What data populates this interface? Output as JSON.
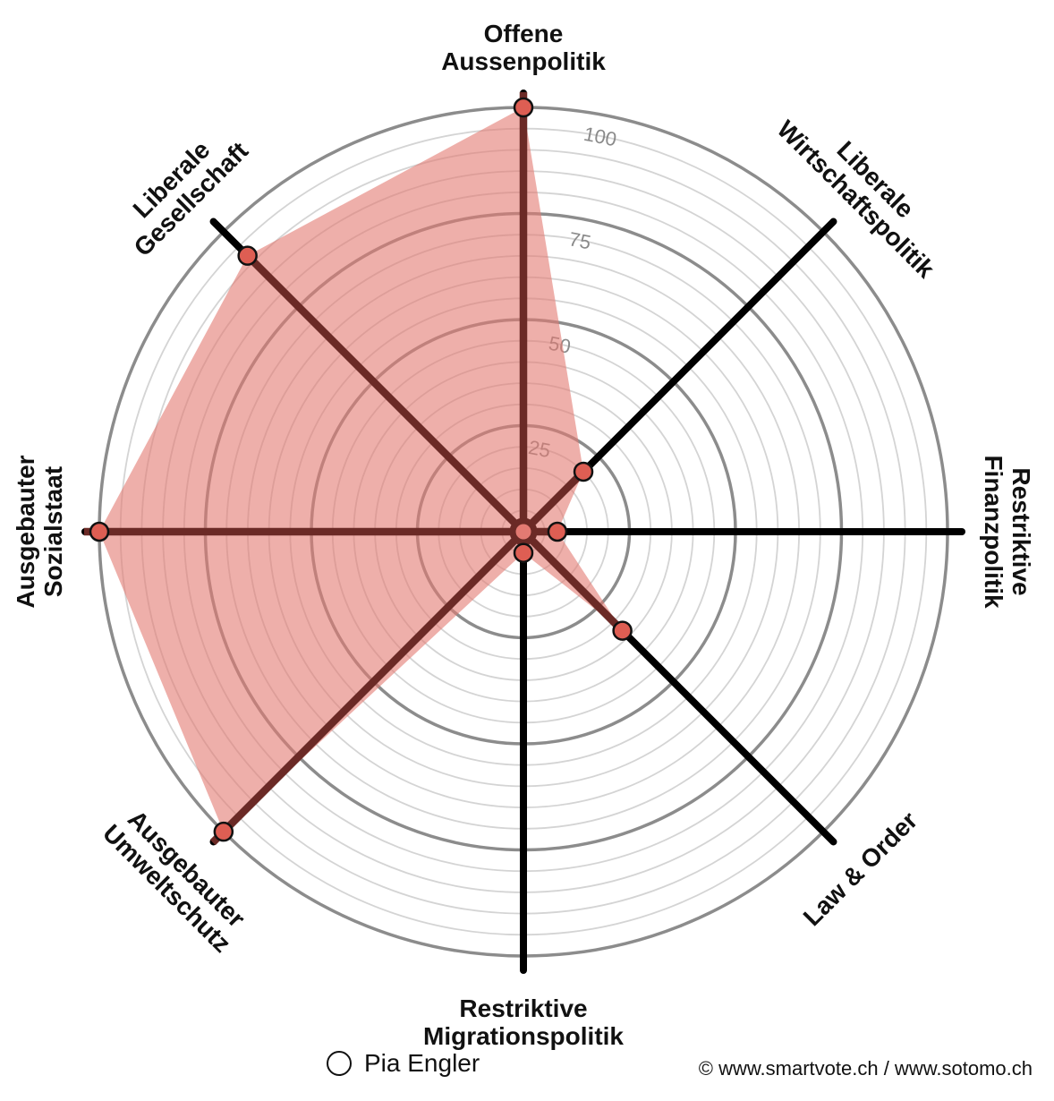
{
  "chart_data": {
    "type": "radar",
    "axes": [
      "Offene Aussenpolitik",
      "Liberale Wirtschaftspolitik",
      "Restriktive Finanzpolitik",
      "Law & Order",
      "Restriktive Migrationspolitik",
      "Ausgebauter Umweltschutz",
      "Ausgebauter Sozialstaat",
      "Liberale Gesellschaft"
    ],
    "axis_label_lines": [
      [
        "Offene",
        "Aussenpolitik"
      ],
      [
        "Liberale",
        "Wirtschaftspolitik"
      ],
      [
        "Restriktive",
        "Finanzpolitik"
      ],
      [
        "Law & Order"
      ],
      [
        "Restriktive",
        "Migrationspolitik"
      ],
      [
        "Ausgebauter",
        "Umweltschutz"
      ],
      [
        "Ausgebauter",
        "Sozialstaat"
      ],
      [
        "Liberale",
        "Gesellschaft"
      ]
    ],
    "series": [
      {
        "name": "Pia Engler",
        "values": [
          100,
          20,
          8,
          33,
          5,
          100,
          100,
          92
        ]
      }
    ],
    "range": [
      0,
      100
    ],
    "ticks": [
      25,
      50,
      75,
      100
    ],
    "grid": true,
    "legend_position": "bottom"
  },
  "colors": {
    "fill": "#e37a72",
    "marker": "#de5e53",
    "axis_active": "#6b2a26",
    "axis_inactive": "#000000",
    "grid_major": "#8c8c8c",
    "grid_minor": "#d4d4d4"
  },
  "legend": {
    "label": "Pia Engler"
  },
  "footer": {
    "copyright": "© www.smartvote.ch / www.sotomo.ch"
  }
}
